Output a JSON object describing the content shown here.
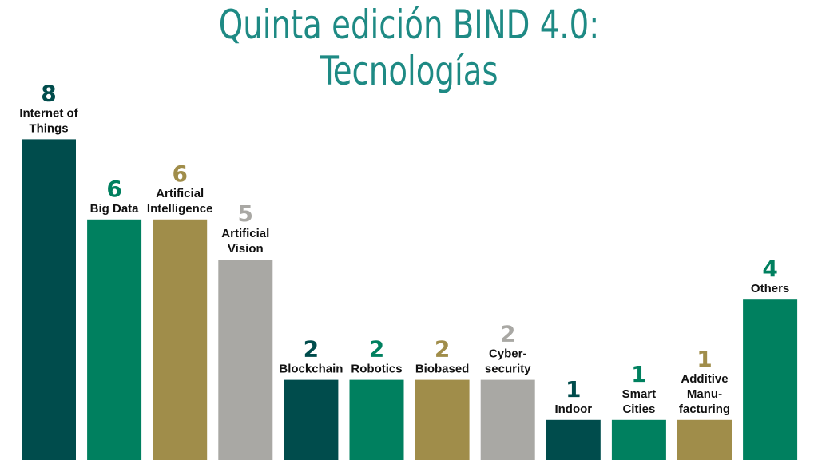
{
  "title_line1": "Quinta edición BIND 4.0:",
  "title_line2": "Tecnologías",
  "chart_data": {
    "type": "bar",
    "title": "Quinta edición BIND 4.0: Tecnologías",
    "categories": [
      [
        "Internet of",
        "Things"
      ],
      [
        "Big Data"
      ],
      [
        "Artificial",
        "Intelligence"
      ],
      [
        "Artificial",
        "Vision"
      ],
      [
        "Blockchain"
      ],
      [
        "Robotics"
      ],
      [
        "Biobased"
      ],
      [
        "Cyber-",
        "security"
      ],
      [
        "Indoor"
      ],
      [
        "Smart",
        "Cities"
      ],
      [
        "Additive",
        "Manu-",
        "facturing"
      ],
      [
        "Others"
      ]
    ],
    "values": [
      8,
      6,
      6,
      5,
      2,
      2,
      2,
      2,
      1,
      1,
      1,
      4
    ],
    "colors": [
      "#004c4c",
      "#00805f",
      "#a08d4a",
      "#a9a8a4",
      "#004c4c",
      "#00805f",
      "#a08d4a",
      "#a9a8a4",
      "#004c4c",
      "#00805f",
      "#a08d4a",
      "#00805f"
    ],
    "ylim": [
      0,
      8
    ],
    "grid": false,
    "legend": "none"
  }
}
